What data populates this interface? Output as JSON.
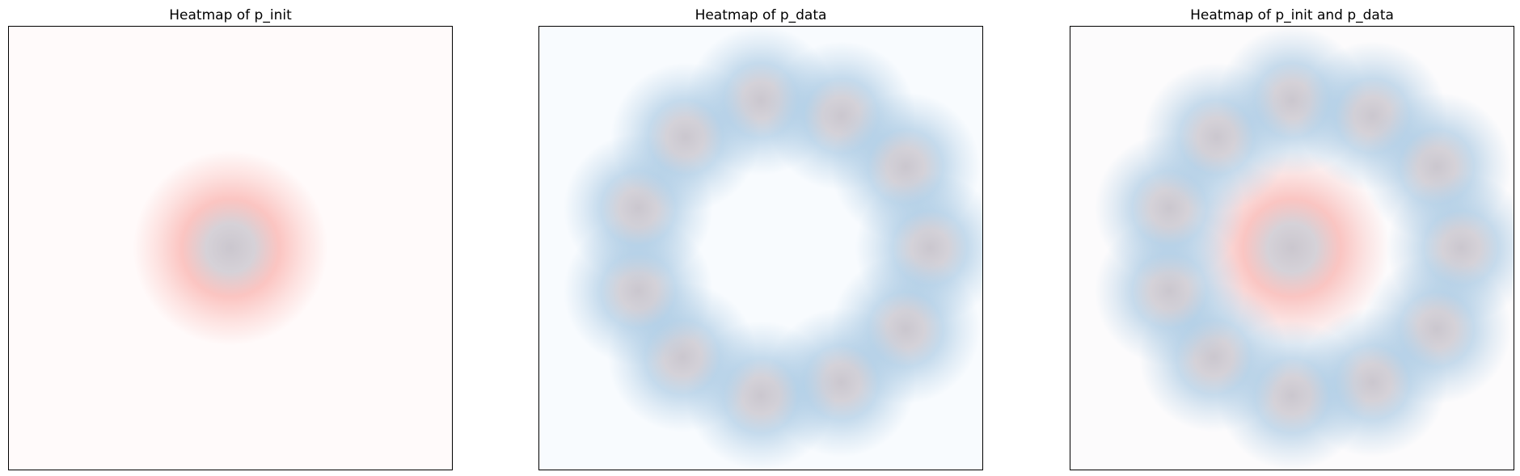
{
  "chart_data": [
    {
      "type": "heatmap",
      "title": "Heatmap of p_init",
      "xlim": [
        -1.5,
        1.5
      ],
      "ylim": [
        -1.5,
        1.5
      ],
      "axes_visible": false,
      "grid": false,
      "background_color": "#fffafa",
      "gaussians": [
        {
          "group": "p_init",
          "x": 0.0,
          "y": 0.0,
          "sigma": 0.3,
          "color": "#f9a8a3"
        }
      ]
    },
    {
      "type": "heatmap",
      "title": "Heatmap of p_data",
      "xlim": [
        -1.5,
        1.5
      ],
      "ylim": [
        -1.5,
        1.5
      ],
      "axes_visible": false,
      "grid": false,
      "background_color": "#f8fbfe",
      "gaussians": [
        {
          "group": "p_data",
          "x": 0.0,
          "y": 1.0,
          "sigma": 0.23,
          "color": "#a9c9e3"
        },
        {
          "group": "p_data",
          "x": 0.545,
          "y": 0.895,
          "sigma": 0.23,
          "color": "#a9c9e3"
        },
        {
          "group": "p_data",
          "x": 0.98,
          "y": 0.55,
          "sigma": 0.23,
          "color": "#a9c9e3"
        },
        {
          "group": "p_data",
          "x": 1.145,
          "y": 0.0,
          "sigma": 0.23,
          "color": "#a9c9e3"
        },
        {
          "group": "p_data",
          "x": 0.98,
          "y": -0.55,
          "sigma": 0.23,
          "color": "#a9c9e3"
        },
        {
          "group": "p_data",
          "x": 0.545,
          "y": -0.91,
          "sigma": 0.23,
          "color": "#a9c9e3"
        },
        {
          "group": "p_data",
          "x": 0.0,
          "y": -1.0,
          "sigma": 0.23,
          "color": "#a9c9e3"
        },
        {
          "group": "p_data",
          "x": -0.53,
          "y": -0.74,
          "sigma": 0.23,
          "color": "#a9c9e3"
        },
        {
          "group": "p_data",
          "x": -0.83,
          "y": -0.29,
          "sigma": 0.23,
          "color": "#a9c9e3"
        },
        {
          "group": "p_data",
          "x": -0.83,
          "y": 0.27,
          "sigma": 0.23,
          "color": "#a9c9e3"
        },
        {
          "group": "p_data",
          "x": -0.51,
          "y": 0.75,
          "sigma": 0.23,
          "color": "#a9c9e3"
        }
      ]
    },
    {
      "type": "heatmap",
      "title": "Heatmap of p_init and p_data",
      "xlim": [
        -1.5,
        1.5
      ],
      "ylim": [
        -1.5,
        1.5
      ],
      "axes_visible": false,
      "grid": false,
      "background_color": "#fcfbfc",
      "gaussians": [
        {
          "group": "p_init",
          "x": 0.0,
          "y": 0.0,
          "sigma": 0.3,
          "color": "#f9a8a3"
        },
        {
          "group": "p_data",
          "x": 0.0,
          "y": 1.0,
          "sigma": 0.23,
          "color": "#a9c9e3"
        },
        {
          "group": "p_data",
          "x": 0.545,
          "y": 0.895,
          "sigma": 0.23,
          "color": "#a9c9e3"
        },
        {
          "group": "p_data",
          "x": 0.98,
          "y": 0.55,
          "sigma": 0.23,
          "color": "#a9c9e3"
        },
        {
          "group": "p_data",
          "x": 1.145,
          "y": 0.0,
          "sigma": 0.23,
          "color": "#a9c9e3"
        },
        {
          "group": "p_data",
          "x": 0.98,
          "y": -0.55,
          "sigma": 0.23,
          "color": "#a9c9e3"
        },
        {
          "group": "p_data",
          "x": 0.545,
          "y": -0.91,
          "sigma": 0.23,
          "color": "#a9c9e3"
        },
        {
          "group": "p_data",
          "x": 0.0,
          "y": -1.0,
          "sigma": 0.23,
          "color": "#a9c9e3"
        },
        {
          "group": "p_data",
          "x": -0.53,
          "y": -0.74,
          "sigma": 0.23,
          "color": "#a9c9e3"
        },
        {
          "group": "p_data",
          "x": -0.83,
          "y": -0.29,
          "sigma": 0.23,
          "color": "#a9c9e3"
        },
        {
          "group": "p_data",
          "x": -0.83,
          "y": 0.27,
          "sigma": 0.23,
          "color": "#a9c9e3"
        },
        {
          "group": "p_data",
          "x": -0.51,
          "y": 0.75,
          "sigma": 0.23,
          "color": "#a9c9e3"
        }
      ]
    }
  ]
}
